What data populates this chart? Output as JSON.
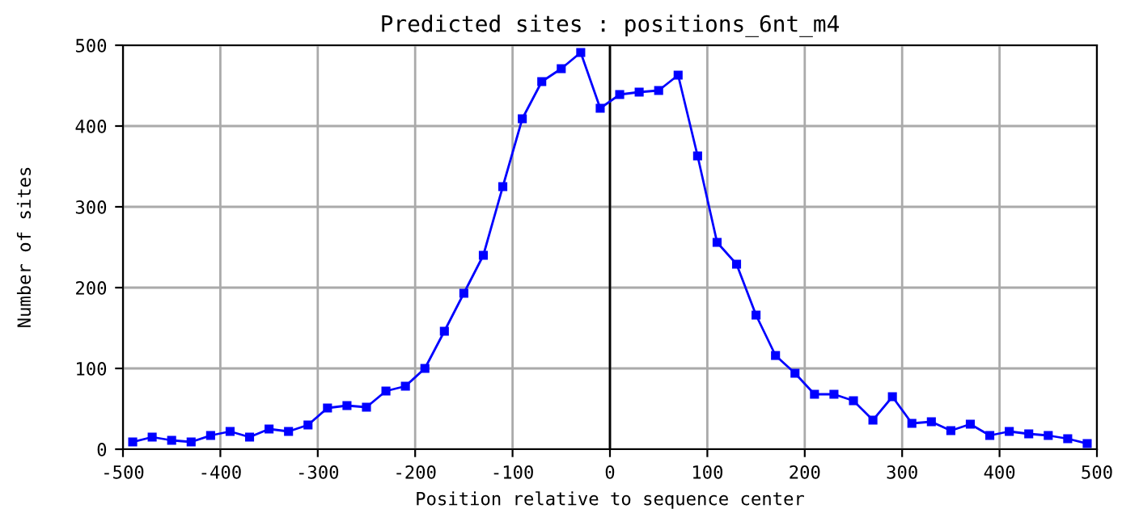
{
  "chart_data": {
    "type": "line",
    "title": "Predicted sites : positions_6nt_m4",
    "xlabel": "Position relative to sequence center",
    "ylabel": "Number of sites",
    "x": [
      -490,
      -470,
      -450,
      -430,
      -410,
      -390,
      -370,
      -350,
      -330,
      -310,
      -290,
      -270,
      -250,
      -230,
      -210,
      -190,
      -170,
      -150,
      -130,
      -110,
      -90,
      -70,
      -50,
      -30,
      -10,
      10,
      30,
      50,
      70,
      90,
      110,
      130,
      150,
      170,
      190,
      210,
      230,
      250,
      270,
      290,
      310,
      330,
      350,
      370,
      390,
      410,
      430,
      450,
      470,
      490
    ],
    "series": [
      {
        "color": "#0000ff",
        "values": [
          9,
          15,
          11,
          9,
          17,
          22,
          15,
          25,
          22,
          30,
          51,
          54,
          52,
          72,
          78,
          100,
          146,
          193,
          240,
          325,
          409,
          455,
          471,
          491,
          422,
          439,
          442,
          444,
          463,
          363,
          256,
          229,
          166,
          116,
          94,
          68,
          68,
          60,
          36,
          65,
          32,
          34,
          23,
          31,
          17,
          22,
          19,
          17,
          13,
          7
        ]
      }
    ],
    "xlim": [
      -500,
      500
    ],
    "ylim": [
      0,
      500
    ],
    "xticks": [
      -500,
      -400,
      -300,
      -200,
      -100,
      0,
      100,
      200,
      300,
      400,
      500
    ],
    "yticks": [
      0,
      100,
      200,
      300,
      400,
      500
    ],
    "ref_lines": [
      {
        "axis": "x",
        "value": 0,
        "color": "#000000"
      }
    ],
    "grid": true,
    "marker": "square",
    "line_style": "solid"
  }
}
